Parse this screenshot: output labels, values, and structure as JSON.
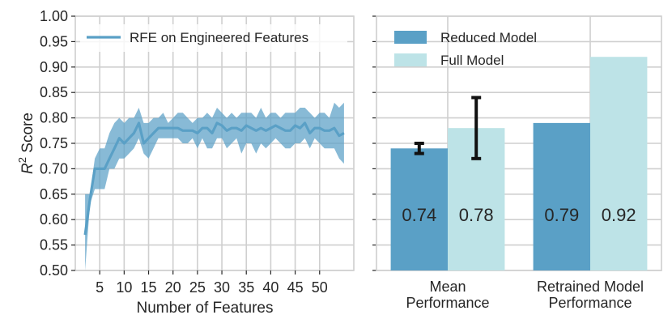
{
  "chart_data": [
    {
      "type": "line",
      "title": "",
      "xlabel": "Number of Features",
      "ylabel": "Score",
      "ylabel_math": "R",
      "ylabel_sup": "2",
      "xlim": [
        0,
        57
      ],
      "ylim": [
        0.5,
        1.0
      ],
      "grid": true,
      "legend_position": "top-left",
      "x_ticks": [
        5,
        10,
        15,
        20,
        25,
        30,
        35,
        40,
        45,
        50
      ],
      "y_ticks": [
        0.5,
        0.55,
        0.6,
        0.65,
        0.7,
        0.75,
        0.8,
        0.85,
        0.9,
        0.95,
        1.0
      ],
      "x_tick_labels": [
        "5",
        "10",
        "15",
        "20",
        "25",
        "30",
        "35",
        "40",
        "45",
        "50"
      ],
      "y_tick_labels": [
        "0.50",
        "0.55",
        "0.60",
        "0.65",
        "0.70",
        "0.75",
        "0.80",
        "0.85",
        "0.90",
        "0.95",
        "1.00"
      ],
      "series": [
        {
          "name": "RFE on Engineered Features",
          "color": "#5aa0c6",
          "x": [
            2,
            3,
            4,
            5,
            6,
            7,
            8,
            9,
            10,
            11,
            12,
            13,
            14,
            15,
            16,
            17,
            18,
            19,
            20,
            21,
            22,
            23,
            24,
            25,
            26,
            27,
            28,
            29,
            30,
            31,
            32,
            33,
            34,
            35,
            36,
            37,
            38,
            39,
            40,
            41,
            42,
            43,
            44,
            45,
            46,
            47,
            48,
            49,
            50,
            51,
            52,
            53,
            54,
            55
          ],
          "mean": [
            0.57,
            0.64,
            0.7,
            0.7,
            0.7,
            0.72,
            0.74,
            0.76,
            0.75,
            0.76,
            0.77,
            0.79,
            0.75,
            0.76,
            0.77,
            0.78,
            0.78,
            0.78,
            0.78,
            0.78,
            0.775,
            0.775,
            0.775,
            0.77,
            0.78,
            0.78,
            0.77,
            0.79,
            0.785,
            0.775,
            0.78,
            0.78,
            0.775,
            0.785,
            0.78,
            0.775,
            0.78,
            0.775,
            0.78,
            0.785,
            0.78,
            0.775,
            0.775,
            0.785,
            0.78,
            0.79,
            0.77,
            0.78,
            0.78,
            0.775,
            0.775,
            0.78,
            0.765,
            0.77
          ],
          "upper": [
            0.65,
            0.65,
            0.72,
            0.74,
            0.74,
            0.77,
            0.79,
            0.8,
            0.79,
            0.8,
            0.8,
            0.82,
            0.79,
            0.79,
            0.8,
            0.8,
            0.81,
            0.79,
            0.8,
            0.81,
            0.81,
            0.8,
            0.79,
            0.8,
            0.8,
            0.81,
            0.8,
            0.82,
            0.81,
            0.8,
            0.81,
            0.8,
            0.81,
            0.81,
            0.81,
            0.8,
            0.82,
            0.8,
            0.81,
            0.81,
            0.8,
            0.81,
            0.81,
            0.81,
            0.82,
            0.82,
            0.81,
            0.8,
            0.81,
            0.81,
            0.8,
            0.83,
            0.82,
            0.83
          ],
          "lower": [
            0.5,
            0.63,
            0.66,
            0.66,
            0.66,
            0.7,
            0.7,
            0.72,
            0.72,
            0.73,
            0.74,
            0.76,
            0.73,
            0.72,
            0.74,
            0.76,
            0.76,
            0.76,
            0.76,
            0.76,
            0.75,
            0.75,
            0.76,
            0.74,
            0.76,
            0.74,
            0.74,
            0.76,
            0.76,
            0.74,
            0.75,
            0.76,
            0.73,
            0.75,
            0.75,
            0.73,
            0.75,
            0.74,
            0.75,
            0.76,
            0.75,
            0.74,
            0.74,
            0.75,
            0.75,
            0.76,
            0.74,
            0.76,
            0.75,
            0.74,
            0.74,
            0.74,
            0.72,
            0.71
          ]
        }
      ]
    },
    {
      "type": "bar",
      "title": "",
      "categories": [
        "Mean\nPerformance",
        "Retrained Model\nPerformance"
      ],
      "category_lines": [
        [
          "Mean",
          "Performance"
        ],
        [
          "Retrained Model",
          "Performance"
        ]
      ],
      "ylim": [
        0.5,
        1.0
      ],
      "grid": true,
      "legend_position": "top-left",
      "series": [
        {
          "name": "Reduced Model",
          "color": "#5aa0c6",
          "values": [
            0.74,
            0.79
          ],
          "labels": [
            "0.74",
            "0.79"
          ],
          "error": [
            [
              0.73,
              0.75
            ],
            null
          ]
        },
        {
          "name": "Full Model",
          "color": "#bde3e7",
          "values": [
            0.78,
            0.92
          ],
          "labels": [
            "0.78",
            "0.92"
          ],
          "error": [
            [
              0.72,
              0.84
            ],
            null
          ]
        }
      ]
    }
  ]
}
